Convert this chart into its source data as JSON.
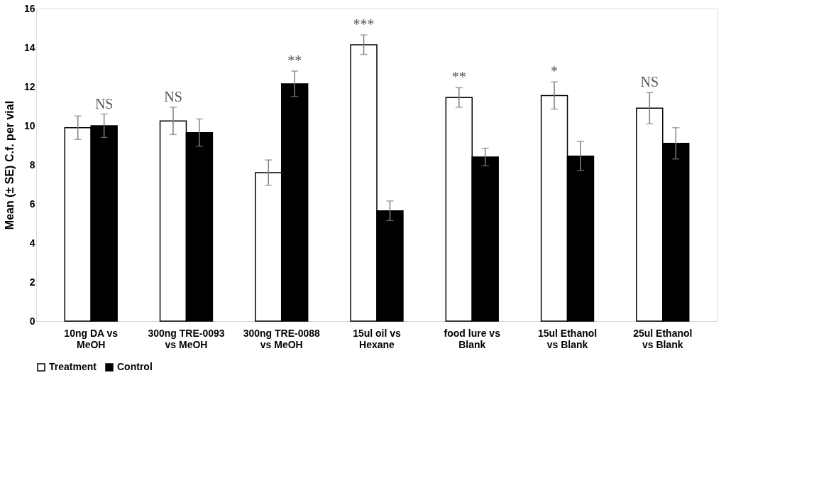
{
  "chart_data": {
    "type": "bar",
    "ylabel": "Mean (± SE) C.f. per vial",
    "categories": [
      "10ng DA vs MeOH",
      "300ng TRE-0093 vs MeOH",
      "300ng TRE-0088 vs MeOH",
      "15ul oil vs Hexane",
      "food lure vs Blank",
      "15ul Ethanol vs Blank",
      "25ul Ethanol vs Blank"
    ],
    "series": [
      {
        "name": "Treatment",
        "color": "#ffffff",
        "values": [
          9.9,
          10.25,
          7.6,
          14.15,
          11.45,
          11.55,
          10.9
        ],
        "errors": [
          0.6,
          0.7,
          0.65,
          0.5,
          0.5,
          0.7,
          0.8
        ]
      },
      {
        "name": "Control",
        "color": "#000000",
        "values": [
          10.0,
          9.65,
          12.15,
          5.65,
          8.4,
          8.45,
          9.1
        ],
        "errors": [
          0.6,
          0.7,
          0.65,
          0.5,
          0.45,
          0.75,
          0.8
        ]
      }
    ],
    "annotations": [
      "NS",
      "NS",
      "**",
      "***",
      "**",
      "*",
      "NS"
    ],
    "ylim": [
      0,
      16
    ],
    "yticks": [
      0,
      2,
      4,
      6,
      8,
      10,
      12,
      14,
      16
    ],
    "grid": false,
    "legend": "bottom"
  }
}
